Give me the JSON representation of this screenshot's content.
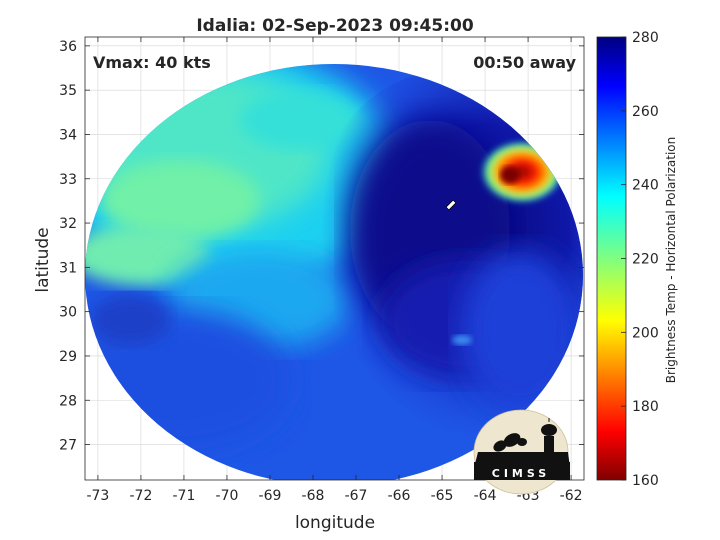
{
  "title": "Idalia: 02-Sep-2023 09:45:00",
  "vmax_label": "Vmax: 40 kts",
  "time_label": "00:50 away",
  "xlabel": "longitude",
  "ylabel": "latitude",
  "colorbar_label": "Brightness Temp - Horizontal Polarization",
  "logo_text": "CIMSS",
  "map": {
    "lon_range": [
      -73.3,
      -61.7
    ],
    "lat_range": [
      26.2,
      36.2
    ],
    "lon_ticks": [
      -73,
      -72,
      -71,
      -70,
      -69,
      -68,
      -67,
      -66,
      -65,
      -64,
      -63,
      -62
    ],
    "lat_ticks": [
      27,
      28,
      29,
      30,
      31,
      32,
      33,
      34,
      35,
      36
    ],
    "grid": true,
    "swath_center": [
      -67.5,
      31.2
    ],
    "storm_center": [
      -64.8,
      32.2
    ]
  },
  "colorbar": {
    "min": 160,
    "max": 280,
    "ticks": [
      160,
      180,
      200,
      220,
      240,
      260,
      280
    ]
  },
  "colors": {
    "cold_core": "#0b0c8a",
    "background": "#ffffff",
    "axis": "#262626"
  }
}
